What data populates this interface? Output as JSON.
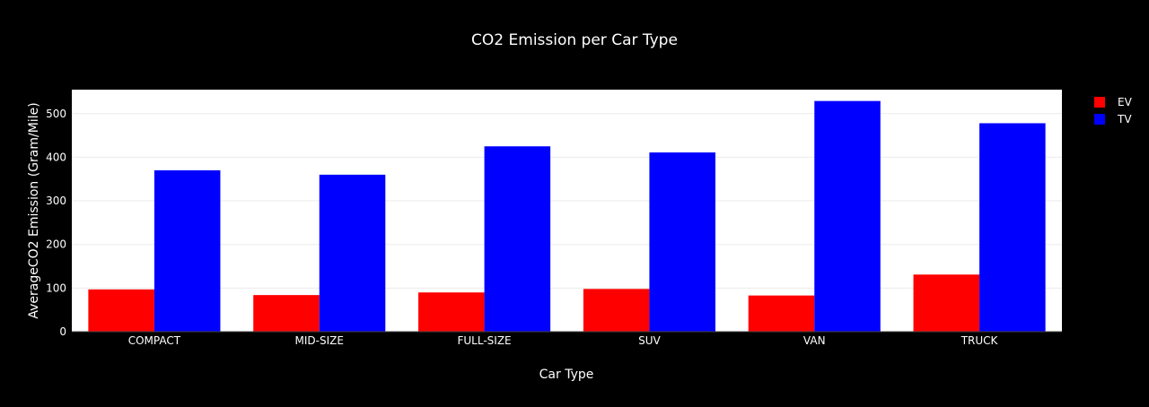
{
  "chart_data": {
    "type": "bar",
    "title": "CO2 Emission per Car Type",
    "xlabel": "Car Type",
    "ylabel": "AverageCO2 Emission (Gram/Mile)",
    "categories": [
      "COMPACT",
      "MID-SIZE",
      "FULL-SIZE",
      "SUV",
      "VAN",
      "TRUCK"
    ],
    "series": [
      {
        "name": "EV",
        "color": "#ff0000",
        "values": [
          97,
          84,
          90,
          98,
          83,
          131
        ]
      },
      {
        "name": "TV",
        "color": "#0000ff",
        "values": [
          370,
          360,
          425,
          411,
          529,
          478
        ]
      }
    ],
    "ylim": [
      0,
      555
    ],
    "yticks": [
      0,
      100,
      200,
      300,
      400,
      500
    ],
    "grid": true,
    "legend_position": "top-right",
    "plot_background": "#ffffff",
    "paper_background": "#000000"
  }
}
